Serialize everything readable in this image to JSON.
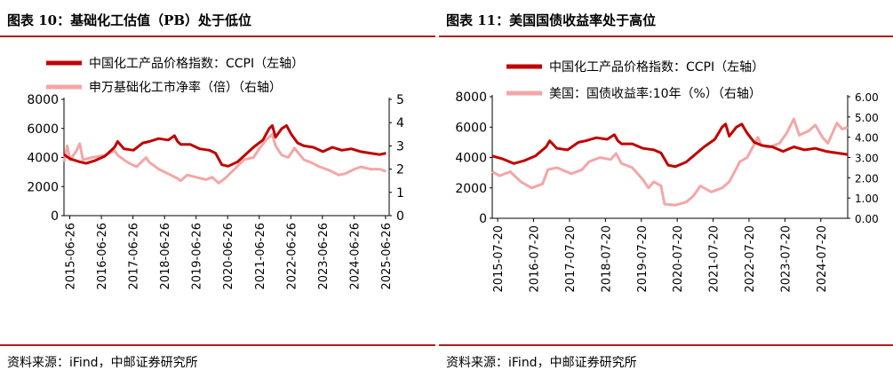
{
  "chart_data": [
    {
      "type": "line",
      "title": "图表 10：基础化工估值（PB）处于低位",
      "source": "资料来源：iFind，中邮证券研究所",
      "x_ticks": [
        "2015-06-26",
        "2016-06-26",
        "2017-06-26",
        "2018-06-26",
        "2019-06-26",
        "2020-06-26",
        "2021-06-26",
        "2022-06-26",
        "2023-06-26",
        "2024-06-26",
        "2025-06-26"
      ],
      "xlim": [
        2015.3,
        2025.6
      ],
      "y_left": {
        "ticks": [
          "0",
          "2000",
          "4000",
          "6000",
          "8000"
        ],
        "ylim": [
          0,
          8000
        ]
      },
      "y_right": {
        "ticks": [
          "0",
          "1",
          "2",
          "3",
          "4",
          "5"
        ],
        "ylim": [
          0,
          5
        ]
      },
      "series": [
        {
          "name": "中国化工产品价格指数：CCPI（左轴）",
          "axis": "left",
          "color": "#c00000",
          "points": [
            [
              2015.3,
              4200
            ],
            [
              2015.5,
              3900
            ],
            [
              2015.8,
              3700
            ],
            [
              2016.0,
              3600
            ],
            [
              2016.3,
              3800
            ],
            [
              2016.6,
              4100
            ],
            [
              2016.9,
              4700
            ],
            [
              2017.0,
              5100
            ],
            [
              2017.2,
              4600
            ],
            [
              2017.5,
              4500
            ],
            [
              2017.8,
              5000
            ],
            [
              2018.0,
              5100
            ],
            [
              2018.3,
              5300
            ],
            [
              2018.6,
              5200
            ],
            [
              2018.8,
              5500
            ],
            [
              2018.9,
              5100
            ],
            [
              2019.0,
              4900
            ],
            [
              2019.3,
              4900
            ],
            [
              2019.6,
              4600
            ],
            [
              2019.9,
              4500
            ],
            [
              2020.0,
              4400
            ],
            [
              2020.1,
              4300
            ],
            [
              2020.3,
              3500
            ],
            [
              2020.5,
              3400
            ],
            [
              2020.8,
              3700
            ],
            [
              2021.0,
              4100
            ],
            [
              2021.3,
              4700
            ],
            [
              2021.6,
              5200
            ],
            [
              2021.8,
              6000
            ],
            [
              2021.9,
              6200
            ],
            [
              2022.0,
              5400
            ],
            [
              2022.2,
              6000
            ],
            [
              2022.35,
              6200
            ],
            [
              2022.5,
              5600
            ],
            [
              2022.7,
              5000
            ],
            [
              2022.9,
              4800
            ],
            [
              2023.2,
              4700
            ],
            [
              2023.5,
              4400
            ],
            [
              2023.8,
              4700
            ],
            [
              2024.1,
              4500
            ],
            [
              2024.4,
              4600
            ],
            [
              2024.7,
              4400
            ],
            [
              2025.0,
              4300
            ],
            [
              2025.3,
              4200
            ],
            [
              2025.5,
              4300
            ]
          ]
        },
        {
          "name": "申万基础化工市净率（倍）（右轴）",
          "axis": "right",
          "color": "#f4a6a6",
          "points": [
            [
              2015.3,
              2.3
            ],
            [
              2015.4,
              3.0
            ],
            [
              2015.5,
              2.4
            ],
            [
              2015.7,
              2.8
            ],
            [
              2015.8,
              3.1
            ],
            [
              2015.9,
              2.4
            ],
            [
              2016.2,
              2.5
            ],
            [
              2016.6,
              2.6
            ],
            [
              2016.9,
              2.8
            ],
            [
              2017.0,
              2.6
            ],
            [
              2017.3,
              2.3
            ],
            [
              2017.6,
              2.1
            ],
            [
              2017.9,
              2.5
            ],
            [
              2018.0,
              2.3
            ],
            [
              2018.3,
              2.0
            ],
            [
              2018.6,
              1.8
            ],
            [
              2018.9,
              1.6
            ],
            [
              2019.0,
              1.5
            ],
            [
              2019.2,
              1.75
            ],
            [
              2019.5,
              1.65
            ],
            [
              2019.8,
              1.55
            ],
            [
              2020.0,
              1.65
            ],
            [
              2020.2,
              1.4
            ],
            [
              2020.4,
              1.6
            ],
            [
              2020.7,
              2.0
            ],
            [
              2021.0,
              2.4
            ],
            [
              2021.3,
              2.5
            ],
            [
              2021.5,
              2.9
            ],
            [
              2021.7,
              3.25
            ],
            [
              2021.9,
              3.5
            ],
            [
              2022.0,
              3.0
            ],
            [
              2022.2,
              2.6
            ],
            [
              2022.4,
              2.5
            ],
            [
              2022.6,
              2.9
            ],
            [
              2022.9,
              2.4
            ],
            [
              2023.1,
              2.3
            ],
            [
              2023.4,
              2.1
            ],
            [
              2023.7,
              1.95
            ],
            [
              2024.0,
              1.75
            ],
            [
              2024.2,
              1.8
            ],
            [
              2024.5,
              2.0
            ],
            [
              2024.7,
              2.1
            ],
            [
              2025.0,
              2.0
            ],
            [
              2025.3,
              2.0
            ],
            [
              2025.5,
              1.9
            ]
          ]
        }
      ]
    },
    {
      "type": "line",
      "title": "图表 11：美国国债收益率处于高位",
      "source": "资料来源：iFind，中邮证券研究所",
      "x_ticks": [
        "2015-07-20",
        "2016-07-20",
        "2017-07-20",
        "2018-07-20",
        "2019-07-20",
        "2020-07-20",
        "2021-07-20",
        "2022-07-20",
        "2023-07-20",
        "2024-07-20"
      ],
      "xlim": [
        2015.4,
        2025.3
      ],
      "y_left": {
        "ticks": [
          "0",
          "2000",
          "4000",
          "6000",
          "8000"
        ],
        "ylim": [
          0,
          8000
        ]
      },
      "y_right": {
        "ticks": [
          "0.00",
          "1.00",
          "2.00",
          "3.00",
          "4.00",
          "5.00",
          "6.00"
        ],
        "ylim": [
          0,
          6
        ]
      },
      "series": [
        {
          "name": "中国化工产品价格指数：CCPI（左轴）",
          "axis": "left",
          "color": "#c00000",
          "points": [
            [
              2015.4,
              4100
            ],
            [
              2015.7,
              3900
            ],
            [
              2016.0,
              3600
            ],
            [
              2016.3,
              3800
            ],
            [
              2016.6,
              4100
            ],
            [
              2016.9,
              4700
            ],
            [
              2017.0,
              5100
            ],
            [
              2017.2,
              4600
            ],
            [
              2017.5,
              4500
            ],
            [
              2017.8,
              5000
            ],
            [
              2018.0,
              5100
            ],
            [
              2018.3,
              5300
            ],
            [
              2018.6,
              5200
            ],
            [
              2018.8,
              5500
            ],
            [
              2018.9,
              5100
            ],
            [
              2019.0,
              4900
            ],
            [
              2019.3,
              4900
            ],
            [
              2019.6,
              4600
            ],
            [
              2019.9,
              4500
            ],
            [
              2020.0,
              4400
            ],
            [
              2020.1,
              4300
            ],
            [
              2020.3,
              3500
            ],
            [
              2020.5,
              3400
            ],
            [
              2020.8,
              3700
            ],
            [
              2021.0,
              4100
            ],
            [
              2021.3,
              4700
            ],
            [
              2021.6,
              5200
            ],
            [
              2021.8,
              6000
            ],
            [
              2021.9,
              6200
            ],
            [
              2022.0,
              5400
            ],
            [
              2022.2,
              6000
            ],
            [
              2022.35,
              6200
            ],
            [
              2022.5,
              5600
            ],
            [
              2022.7,
              5000
            ],
            [
              2022.9,
              4800
            ],
            [
              2023.2,
              4700
            ],
            [
              2023.5,
              4400
            ],
            [
              2023.8,
              4700
            ],
            [
              2024.1,
              4500
            ],
            [
              2024.4,
              4600
            ],
            [
              2024.7,
              4400
            ],
            [
              2025.0,
              4300
            ],
            [
              2025.3,
              4200
            ]
          ]
        },
        {
          "name": "美国：国债收益率:10年（%）（右轴）",
          "axis": "right",
          "color": "#f4a6a6",
          "points": [
            [
              2015.4,
              2.3
            ],
            [
              2015.6,
              2.1
            ],
            [
              2015.9,
              2.3
            ],
            [
              2016.2,
              1.8
            ],
            [
              2016.5,
              1.5
            ],
            [
              2016.8,
              1.7
            ],
            [
              2016.95,
              2.4
            ],
            [
              2017.2,
              2.5
            ],
            [
              2017.6,
              2.2
            ],
            [
              2017.9,
              2.4
            ],
            [
              2018.1,
              2.8
            ],
            [
              2018.4,
              3.0
            ],
            [
              2018.7,
              2.9
            ],
            [
              2018.85,
              3.2
            ],
            [
              2019.0,
              2.7
            ],
            [
              2019.3,
              2.5
            ],
            [
              2019.6,
              1.9
            ],
            [
              2019.75,
              1.5
            ],
            [
              2019.9,
              1.8
            ],
            [
              2020.1,
              1.6
            ],
            [
              2020.2,
              0.7
            ],
            [
              2020.5,
              0.65
            ],
            [
              2020.8,
              0.8
            ],
            [
              2021.0,
              1.1
            ],
            [
              2021.2,
              1.6
            ],
            [
              2021.5,
              1.3
            ],
            [
              2021.8,
              1.5
            ],
            [
              2022.0,
              1.8
            ],
            [
              2022.3,
              2.8
            ],
            [
              2022.5,
              3.0
            ],
            [
              2022.8,
              4.0
            ],
            [
              2022.9,
              3.6
            ],
            [
              2023.1,
              3.5
            ],
            [
              2023.4,
              3.7
            ],
            [
              2023.6,
              4.2
            ],
            [
              2023.8,
              4.9
            ],
            [
              2023.95,
              4.1
            ],
            [
              2024.2,
              4.3
            ],
            [
              2024.4,
              4.6
            ],
            [
              2024.6,
              4.0
            ],
            [
              2024.75,
              3.7
            ],
            [
              2024.9,
              4.3
            ],
            [
              2025.0,
              4.7
            ],
            [
              2025.15,
              4.4
            ],
            [
              2025.3,
              4.5
            ]
          ]
        }
      ]
    }
  ]
}
